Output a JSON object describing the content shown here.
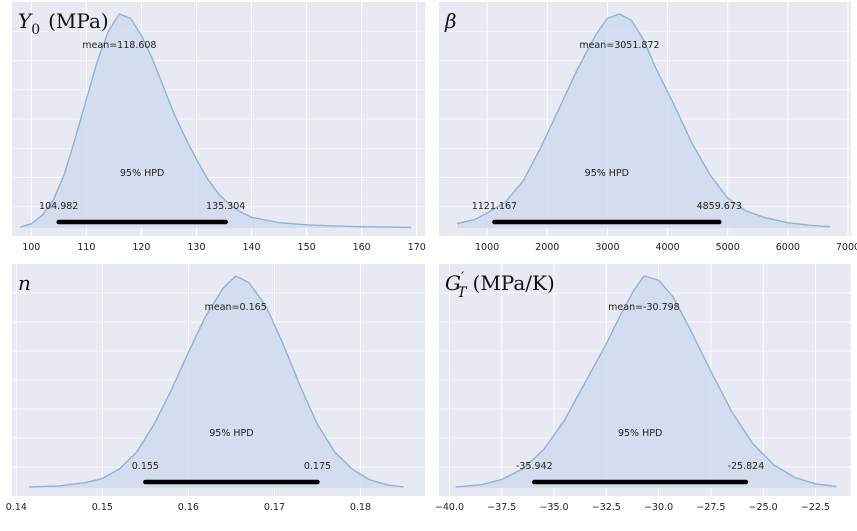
{
  "chart_data": [
    {
      "type": "area",
      "title_parts": {
        "symbol": "Y",
        "sub": "0",
        "unit": "(MPa)"
      },
      "xlim": [
        96.5,
        171.5
      ],
      "xticks": [
        100,
        110,
        120,
        130,
        140,
        150,
        160,
        170
      ],
      "curve": [
        [
          98,
          0.004
        ],
        [
          100,
          0.02
        ],
        [
          102,
          0.06
        ],
        [
          104,
          0.13
        ],
        [
          106,
          0.25
        ],
        [
          108,
          0.42
        ],
        [
          110,
          0.6
        ],
        [
          112,
          0.78
        ],
        [
          114,
          0.92
        ],
        [
          116,
          1.0
        ],
        [
          118,
          0.98
        ],
        [
          120,
          0.9
        ],
        [
          122,
          0.79
        ],
        [
          124,
          0.66
        ],
        [
          126,
          0.53
        ],
        [
          128,
          0.42
        ],
        [
          130,
          0.32
        ],
        [
          132,
          0.23
        ],
        [
          134,
          0.16
        ],
        [
          136,
          0.11
        ],
        [
          138,
          0.075
        ],
        [
          140,
          0.05
        ],
        [
          145,
          0.025
        ],
        [
          150,
          0.015
        ],
        [
          155,
          0.01
        ],
        [
          160,
          0.006
        ],
        [
          165,
          0.004
        ],
        [
          169,
          0.003
        ]
      ],
      "mean_label": "mean=118.608",
      "hpd": [
        104.982,
        135.304
      ],
      "hpd_low_label": "104.982",
      "hpd_high_label": "135.304",
      "hpd_text": "95% HPD"
    },
    {
      "type": "area",
      "title_parts": {
        "symbol": "β",
        "sub": "",
        "unit": ""
      },
      "xlim": [
        200,
        7050
      ],
      "xticks": [
        1000,
        2000,
        3000,
        4000,
        5000,
        6000,
        7000
      ],
      "curve": [
        [
          500,
          0.02
        ],
        [
          800,
          0.04
        ],
        [
          1000,
          0.07
        ],
        [
          1300,
          0.12
        ],
        [
          1600,
          0.22
        ],
        [
          1900,
          0.38
        ],
        [
          2200,
          0.56
        ],
        [
          2500,
          0.74
        ],
        [
          2800,
          0.9
        ],
        [
          3000,
          0.98
        ],
        [
          3200,
          1.0
        ],
        [
          3400,
          0.97
        ],
        [
          3600,
          0.88
        ],
        [
          3800,
          0.75
        ],
        [
          4100,
          0.58
        ],
        [
          4400,
          0.4
        ],
        [
          4700,
          0.25
        ],
        [
          5000,
          0.14
        ],
        [
          5300,
          0.08
        ],
        [
          5600,
          0.05
        ],
        [
          6000,
          0.025
        ],
        [
          6400,
          0.012
        ],
        [
          6700,
          0.006
        ]
      ],
      "mean_label": "mean=3051.872",
      "hpd": [
        1121.167,
        4859.673
      ],
      "hpd_low_label": "1121.167",
      "hpd_high_label": "4859.673",
      "hpd_text": "95% HPD"
    },
    {
      "type": "area",
      "title_parts": {
        "symbol": "n",
        "sub": "",
        "unit": ""
      },
      "xlim": [
        0.1395,
        0.1875
      ],
      "xticks": [
        0.14,
        0.15,
        0.16,
        0.17,
        0.18
      ],
      "xtick_labels": [
        "0.14",
        "0.15",
        "0.16",
        "0.17",
        "0.18"
      ],
      "curve": [
        [
          0.1415,
          0.005
        ],
        [
          0.145,
          0.01
        ],
        [
          0.148,
          0.025
        ],
        [
          0.15,
          0.045
        ],
        [
          0.152,
          0.09
        ],
        [
          0.154,
          0.17
        ],
        [
          0.156,
          0.3
        ],
        [
          0.158,
          0.46
        ],
        [
          0.16,
          0.64
        ],
        [
          0.162,
          0.81
        ],
        [
          0.164,
          0.94
        ],
        [
          0.1655,
          1.0
        ],
        [
          0.167,
          0.97
        ],
        [
          0.169,
          0.86
        ],
        [
          0.171,
          0.68
        ],
        [
          0.173,
          0.48
        ],
        [
          0.175,
          0.3
        ],
        [
          0.177,
          0.17
        ],
        [
          0.179,
          0.09
        ],
        [
          0.181,
          0.04
        ],
        [
          0.183,
          0.015
        ],
        [
          0.185,
          0.005
        ]
      ],
      "mean_label": "mean=0.165",
      "hpd": [
        0.155,
        0.175
      ],
      "hpd_low_label": "0.155",
      "hpd_high_label": "0.175",
      "hpd_text": "95% HPD"
    },
    {
      "type": "area",
      "title_parts": {
        "symbol": "G",
        "prime": "′",
        "sub": "T",
        "unit": "(MPa/K)"
      },
      "xlim": [
        -40.5,
        -20.8
      ],
      "xticks": [
        -40.0,
        -37.5,
        -35.0,
        -32.5,
        -30.0,
        -27.5,
        -25.0,
        -22.5
      ],
      "xtick_labels": [
        "−40.0",
        "−37.5",
        "−35.0",
        "−32.5",
        "−30.0",
        "−27.5",
        "−25.0",
        "−22.5"
      ],
      "curve": [
        [
          -39.7,
          0.005
        ],
        [
          -38.5,
          0.015
        ],
        [
          -37.5,
          0.04
        ],
        [
          -36.5,
          0.09
        ],
        [
          -35.5,
          0.18
        ],
        [
          -34.5,
          0.32
        ],
        [
          -33.5,
          0.5
        ],
        [
          -32.5,
          0.68
        ],
        [
          -31.8,
          0.82
        ],
        [
          -31.2,
          0.93
        ],
        [
          -30.7,
          1.0
        ],
        [
          -30.0,
          0.98
        ],
        [
          -29.3,
          0.9
        ],
        [
          -28.5,
          0.75
        ],
        [
          -27.5,
          0.55
        ],
        [
          -26.5,
          0.36
        ],
        [
          -25.5,
          0.21
        ],
        [
          -24.5,
          0.11
        ],
        [
          -23.5,
          0.05
        ],
        [
          -22.5,
          0.02
        ],
        [
          -21.5,
          0.007
        ]
      ],
      "mean_label": "mean=-30.798",
      "hpd": [
        -35.942,
        -25.824
      ],
      "hpd_low_label": "-35.942",
      "hpd_high_label": "-25.824",
      "hpd_text": "95% HPD"
    }
  ],
  "colors": {
    "panel_bg": "#e7e9f3",
    "grid": "#ffffff",
    "curve": "#8fb3d6",
    "fill": "#cfdbec",
    "hpd_bar": "#000000"
  }
}
